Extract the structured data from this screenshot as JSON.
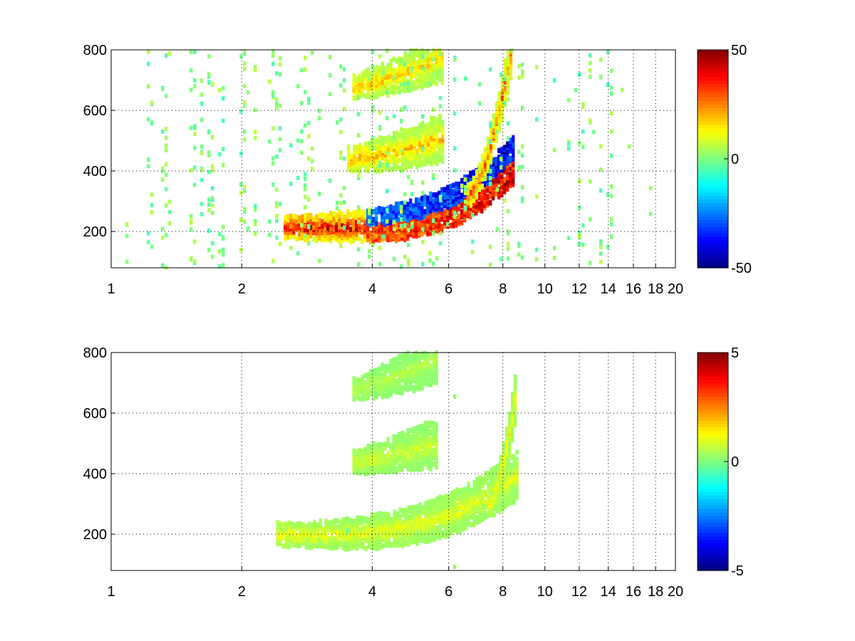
{
  "chart_data": [
    {
      "type": "heatmap",
      "title": "",
      "xlabel": "",
      "ylabel": "",
      "xscale": "log",
      "xlim": [
        1,
        20
      ],
      "ylim": [
        80,
        800
      ],
      "grid": true,
      "x_ticks": [
        1,
        2,
        4,
        6,
        8,
        10,
        12,
        14,
        16,
        18,
        20
      ],
      "x_tick_labels": [
        "1",
        "2",
        "4",
        "6",
        "8",
        "10",
        "12",
        "14",
        "16",
        "18",
        "20"
      ],
      "y_ticks": [
        200,
        400,
        600,
        800
      ],
      "y_tick_labels": [
        "200",
        "400",
        "600",
        "800"
      ],
      "colormap": "jet",
      "colorbar": {
        "range": [
          -50,
          50
        ],
        "ticks": [
          50,
          0,
          -50
        ],
        "tick_labels": [
          "50",
          "0",
          "-50"
        ],
        "placement": "right"
      },
      "features": [
        {
          "x_range": [
            2.5,
            8.4
          ],
          "y_start": 215,
          "y_end": 440,
          "curve": 3.6,
          "amplitude": 45,
          "split": 35
        },
        {
          "x_range": [
            3.5,
            5.8
          ],
          "y_start": 440,
          "y_end": 510,
          "curve": 1.4,
          "amplitude": 22,
          "split": 0
        },
        {
          "x_range": [
            3.6,
            5.8
          ],
          "y_start": 680,
          "y_end": 780,
          "curve": 1.3,
          "amplitude": 20,
          "split": 0
        },
        {
          "x_range": [
            6.6,
            8.3
          ],
          "y_start": 320,
          "y_end": 790,
          "curve": 1.6,
          "amplitude": 32,
          "split": 0
        }
      ],
      "noise_region": {
        "x_range": [
          1,
          20
        ],
        "amplitude": 6
      }
    },
    {
      "type": "heatmap",
      "title": "",
      "xlabel": "",
      "ylabel": "",
      "xscale": "log",
      "xlim": [
        1,
        20
      ],
      "ylim": [
        80,
        800
      ],
      "grid": true,
      "x_ticks": [
        1,
        2,
        4,
        6,
        8,
        10,
        12,
        14,
        16,
        18,
        20
      ],
      "x_tick_labels": [
        "1",
        "2",
        "4",
        "6",
        "8",
        "10",
        "12",
        "14",
        "16",
        "18",
        "20"
      ],
      "y_ticks": [
        200,
        400,
        600,
        800
      ],
      "y_tick_labels": [
        "200",
        "400",
        "600",
        "800"
      ],
      "colormap": "jet",
      "colorbar": {
        "range": [
          -5,
          5
        ],
        "ticks": [
          5,
          0,
          -5
        ],
        "tick_labels": [
          "5",
          "0",
          "-5"
        ],
        "placement": "right"
      },
      "features": [
        {
          "x_range": [
            2.4,
            8.6
          ],
          "y_start": 200,
          "y_end": 400,
          "curve": 3.2,
          "amplitude": 1.2,
          "split": 0
        },
        {
          "x_range": [
            3.6,
            5.6
          ],
          "y_start": 440,
          "y_end": 500,
          "curve": 1.2,
          "amplitude": 0.9,
          "split": 0
        },
        {
          "x_range": [
            3.6,
            5.6
          ],
          "y_start": 680,
          "y_end": 780,
          "curve": 1.2,
          "amplitude": 0.6,
          "split": 0
        },
        {
          "x_range": [
            7.4,
            8.5
          ],
          "y_start": 300,
          "y_end": 650,
          "curve": 1.5,
          "amplitude": 1.5,
          "split": 0
        }
      ],
      "noise_region": {
        "x_range": [
          1,
          9
        ],
        "amplitude": 0.3
      }
    }
  ]
}
